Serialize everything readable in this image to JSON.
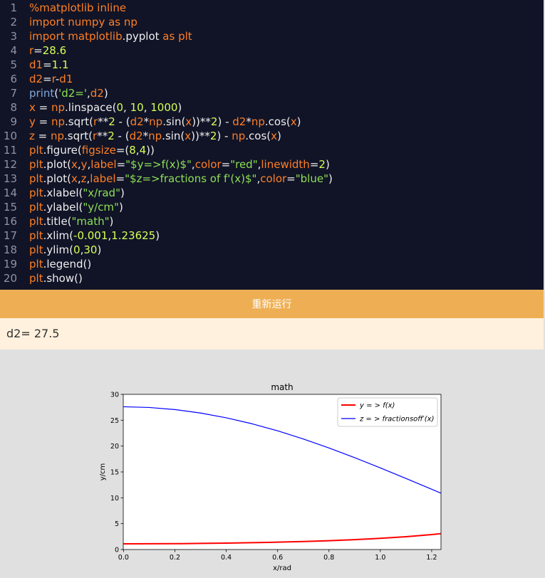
{
  "editor": {
    "lines": [
      {
        "n": "1",
        "tokens": [
          {
            "t": "%matplotlib inline",
            "c": "t-kw"
          }
        ]
      },
      {
        "n": "2",
        "tokens": [
          {
            "t": "import ",
            "c": "t-kw"
          },
          {
            "t": "numpy",
            "c": "t-mod"
          },
          {
            "t": " as ",
            "c": "t-kw"
          },
          {
            "t": "np",
            "c": "t-var"
          }
        ]
      },
      {
        "n": "3",
        "tokens": [
          {
            "t": "import ",
            "c": "t-kw"
          },
          {
            "t": "matplotlib",
            "c": "t-mod"
          },
          {
            "t": ".pyplot",
            "c": "t-op"
          },
          {
            "t": " as ",
            "c": "t-kw"
          },
          {
            "t": "plt",
            "c": "t-var"
          }
        ]
      },
      {
        "n": "4",
        "tokens": [
          {
            "t": "r",
            "c": "t-var"
          },
          {
            "t": "=",
            "c": "t-op"
          },
          {
            "t": "28.6",
            "c": "t-num"
          }
        ]
      },
      {
        "n": "5",
        "tokens": [
          {
            "t": "d1",
            "c": "t-var"
          },
          {
            "t": "=",
            "c": "t-op"
          },
          {
            "t": "1.1",
            "c": "t-num"
          }
        ]
      },
      {
        "n": "6",
        "tokens": [
          {
            "t": "d2",
            "c": "t-var"
          },
          {
            "t": "=",
            "c": "t-op"
          },
          {
            "t": "r",
            "c": "t-var"
          },
          {
            "t": "-",
            "c": "t-op"
          },
          {
            "t": "d1",
            "c": "t-var"
          }
        ]
      },
      {
        "n": "7",
        "tokens": [
          {
            "t": "print",
            "c": "t-fn"
          },
          {
            "t": "(",
            "c": "t-op"
          },
          {
            "t": "'d2='",
            "c": "t-str"
          },
          {
            "t": ",",
            "c": "t-op"
          },
          {
            "t": "d2",
            "c": "t-var"
          },
          {
            "t": ")",
            "c": "t-op"
          }
        ]
      },
      {
        "n": "8",
        "tokens": [
          {
            "t": "x",
            "c": "t-var"
          },
          {
            "t": " = ",
            "c": "t-op"
          },
          {
            "t": "np",
            "c": "t-var"
          },
          {
            "t": ".linspace(",
            "c": "t-op"
          },
          {
            "t": "0",
            "c": "t-num"
          },
          {
            "t": ", ",
            "c": "t-op"
          },
          {
            "t": "10",
            "c": "t-num"
          },
          {
            "t": ", ",
            "c": "t-op"
          },
          {
            "t": "1000",
            "c": "t-num"
          },
          {
            "t": ")",
            "c": "t-op"
          }
        ]
      },
      {
        "n": "9",
        "tokens": [
          {
            "t": "y",
            "c": "t-var"
          },
          {
            "t": " = ",
            "c": "t-op"
          },
          {
            "t": "np",
            "c": "t-var"
          },
          {
            "t": ".sqrt(",
            "c": "t-op"
          },
          {
            "t": "r",
            "c": "t-var"
          },
          {
            "t": "**",
            "c": "t-op"
          },
          {
            "t": "2",
            "c": "t-num"
          },
          {
            "t": " - (",
            "c": "t-op"
          },
          {
            "t": "d2",
            "c": "t-var"
          },
          {
            "t": "*",
            "c": "t-op"
          },
          {
            "t": "np",
            "c": "t-var"
          },
          {
            "t": ".sin(",
            "c": "t-op"
          },
          {
            "t": "x",
            "c": "t-var"
          },
          {
            "t": "))**",
            "c": "t-op"
          },
          {
            "t": "2",
            "c": "t-num"
          },
          {
            "t": ") - ",
            "c": "t-op"
          },
          {
            "t": "d2",
            "c": "t-var"
          },
          {
            "t": "*",
            "c": "t-op"
          },
          {
            "t": "np",
            "c": "t-var"
          },
          {
            "t": ".cos(",
            "c": "t-op"
          },
          {
            "t": "x",
            "c": "t-var"
          },
          {
            "t": ")",
            "c": "t-op"
          }
        ]
      },
      {
        "n": "10",
        "tokens": [
          {
            "t": "z",
            "c": "t-var"
          },
          {
            "t": " = ",
            "c": "t-op"
          },
          {
            "t": "np",
            "c": "t-var"
          },
          {
            "t": ".sqrt(",
            "c": "t-op"
          },
          {
            "t": "r",
            "c": "t-var"
          },
          {
            "t": "**",
            "c": "t-op"
          },
          {
            "t": "2",
            "c": "t-num"
          },
          {
            "t": " - (",
            "c": "t-op"
          },
          {
            "t": "d2",
            "c": "t-var"
          },
          {
            "t": "*",
            "c": "t-op"
          },
          {
            "t": "np",
            "c": "t-var"
          },
          {
            "t": ".sin(",
            "c": "t-op"
          },
          {
            "t": "x",
            "c": "t-var"
          },
          {
            "t": "))**",
            "c": "t-op"
          },
          {
            "t": "2",
            "c": "t-num"
          },
          {
            "t": ") - ",
            "c": "t-op"
          },
          {
            "t": "np",
            "c": "t-var"
          },
          {
            "t": ".cos(",
            "c": "t-op"
          },
          {
            "t": "x",
            "c": "t-var"
          },
          {
            "t": ")",
            "c": "t-op"
          }
        ]
      },
      {
        "n": "11",
        "tokens": [
          {
            "t": "plt",
            "c": "t-var"
          },
          {
            "t": ".figure(",
            "c": "t-op"
          },
          {
            "t": "figsize",
            "c": "t-var"
          },
          {
            "t": "=(",
            "c": "t-op"
          },
          {
            "t": "8",
            "c": "t-num"
          },
          {
            "t": ",",
            "c": "t-op"
          },
          {
            "t": "4",
            "c": "t-num"
          },
          {
            "t": "))",
            "c": "t-op"
          }
        ]
      },
      {
        "n": "12",
        "tokens": [
          {
            "t": "plt",
            "c": "t-var"
          },
          {
            "t": ".plot(",
            "c": "t-op"
          },
          {
            "t": "x",
            "c": "t-var"
          },
          {
            "t": ",",
            "c": "t-op"
          },
          {
            "t": "y",
            "c": "t-var"
          },
          {
            "t": ",",
            "c": "t-op"
          },
          {
            "t": "label",
            "c": "t-var"
          },
          {
            "t": "=",
            "c": "t-op"
          },
          {
            "t": "\"$y=>f(x)$\"",
            "c": "t-str"
          },
          {
            "t": ",",
            "c": "t-op"
          },
          {
            "t": "color",
            "c": "t-var"
          },
          {
            "t": "=",
            "c": "t-op"
          },
          {
            "t": "\"red\"",
            "c": "t-str"
          },
          {
            "t": ",",
            "c": "t-op"
          },
          {
            "t": "linewidth",
            "c": "t-var"
          },
          {
            "t": "=",
            "c": "t-op"
          },
          {
            "t": "2",
            "c": "t-num"
          },
          {
            "t": ")",
            "c": "t-op"
          }
        ]
      },
      {
        "n": "13",
        "tokens": [
          {
            "t": "plt",
            "c": "t-var"
          },
          {
            "t": ".plot(",
            "c": "t-op"
          },
          {
            "t": "x",
            "c": "t-var"
          },
          {
            "t": ",",
            "c": "t-op"
          },
          {
            "t": "z",
            "c": "t-var"
          },
          {
            "t": ",",
            "c": "t-op"
          },
          {
            "t": "label",
            "c": "t-var"
          },
          {
            "t": "=",
            "c": "t-op"
          },
          {
            "t": "\"$z=>fractions of f'(x)$\"",
            "c": "t-str"
          },
          {
            "t": ",",
            "c": "t-op"
          },
          {
            "t": "color",
            "c": "t-var"
          },
          {
            "t": "=",
            "c": "t-op"
          },
          {
            "t": "\"blue\"",
            "c": "t-str"
          },
          {
            "t": ")",
            "c": "t-op"
          }
        ]
      },
      {
        "n": "14",
        "tokens": [
          {
            "t": "plt",
            "c": "t-var"
          },
          {
            "t": ".xlabel(",
            "c": "t-op"
          },
          {
            "t": "\"x/rad\"",
            "c": "t-str"
          },
          {
            "t": ")",
            "c": "t-op"
          }
        ]
      },
      {
        "n": "15",
        "tokens": [
          {
            "t": "plt",
            "c": "t-var"
          },
          {
            "t": ".ylabel(",
            "c": "t-op"
          },
          {
            "t": "\"y/cm\"",
            "c": "t-str"
          },
          {
            "t": ")",
            "c": "t-op"
          }
        ]
      },
      {
        "n": "16",
        "tokens": [
          {
            "t": "plt",
            "c": "t-var"
          },
          {
            "t": ".title(",
            "c": "t-op"
          },
          {
            "t": "\"math\"",
            "c": "t-str"
          },
          {
            "t": ")",
            "c": "t-op"
          }
        ]
      },
      {
        "n": "17",
        "tokens": [
          {
            "t": "plt",
            "c": "t-var"
          },
          {
            "t": ".xlim(",
            "c": "t-op"
          },
          {
            "t": "-0.001",
            "c": "t-num"
          },
          {
            "t": ",",
            "c": "t-op"
          },
          {
            "t": "1.23625",
            "c": "t-num"
          },
          {
            "t": ")",
            "c": "t-op"
          }
        ]
      },
      {
        "n": "18",
        "tokens": [
          {
            "t": "plt",
            "c": "t-var"
          },
          {
            "t": ".ylim(",
            "c": "t-op"
          },
          {
            "t": "0",
            "c": "t-num"
          },
          {
            "t": ",",
            "c": "t-op"
          },
          {
            "t": "30",
            "c": "t-num"
          },
          {
            "t": ")",
            "c": "t-op"
          }
        ]
      },
      {
        "n": "19",
        "tokens": [
          {
            "t": "plt",
            "c": "t-var"
          },
          {
            "t": ".legend()",
            "c": "t-op"
          }
        ]
      },
      {
        "n": "20",
        "tokens": [
          {
            "t": "plt",
            "c": "t-var"
          },
          {
            "t": ".show()",
            "c": "t-op"
          }
        ]
      }
    ]
  },
  "rerun_label": "重新运行",
  "output_text": "d2= 27.5",
  "colors": {
    "editor_bg": "#111427",
    "rerun_bg": "#eeaf54",
    "output_bg": "#fff1dd",
    "series_red": "#ff0000",
    "series_blue": "#0000ff"
  },
  "chart_data": {
    "type": "line",
    "title": "math",
    "xlabel": "x/rad",
    "ylabel": "y/cm",
    "xlim": [
      -0.001,
      1.23625
    ],
    "ylim": [
      0,
      30
    ],
    "xticks": [
      "0.0",
      "0.2",
      "0.4",
      "0.6",
      "0.8",
      "1.0",
      "1.2"
    ],
    "yticks": [
      "0",
      "5",
      "10",
      "15",
      "20",
      "25",
      "30"
    ],
    "legend_position": "top-right",
    "grid": false,
    "series": [
      {
        "name": "y = > f(x)",
        "color": "#ff0000",
        "linewidth": 2,
        "x": [
          0.0,
          0.1,
          0.2,
          0.3,
          0.4,
          0.5,
          0.6,
          0.7,
          0.8,
          0.9,
          1.0,
          1.1,
          1.2,
          1.236
        ],
        "y": [
          1.1,
          1.11,
          1.13,
          1.18,
          1.24,
          1.32,
          1.42,
          1.55,
          1.71,
          1.91,
          2.16,
          2.48,
          2.89,
          3.07
        ]
      },
      {
        "name": "z = > fractionsoff′(x)",
        "color": "#0000ff",
        "linewidth": 1,
        "x": [
          0.0,
          0.1,
          0.2,
          0.3,
          0.4,
          0.5,
          0.6,
          0.7,
          0.8,
          0.9,
          1.0,
          1.1,
          1.2,
          1.236
        ],
        "y": [
          27.6,
          27.46,
          27.06,
          26.39,
          25.47,
          24.32,
          22.95,
          21.38,
          19.64,
          17.76,
          15.78,
          13.73,
          11.65,
          10.9
        ]
      }
    ]
  }
}
